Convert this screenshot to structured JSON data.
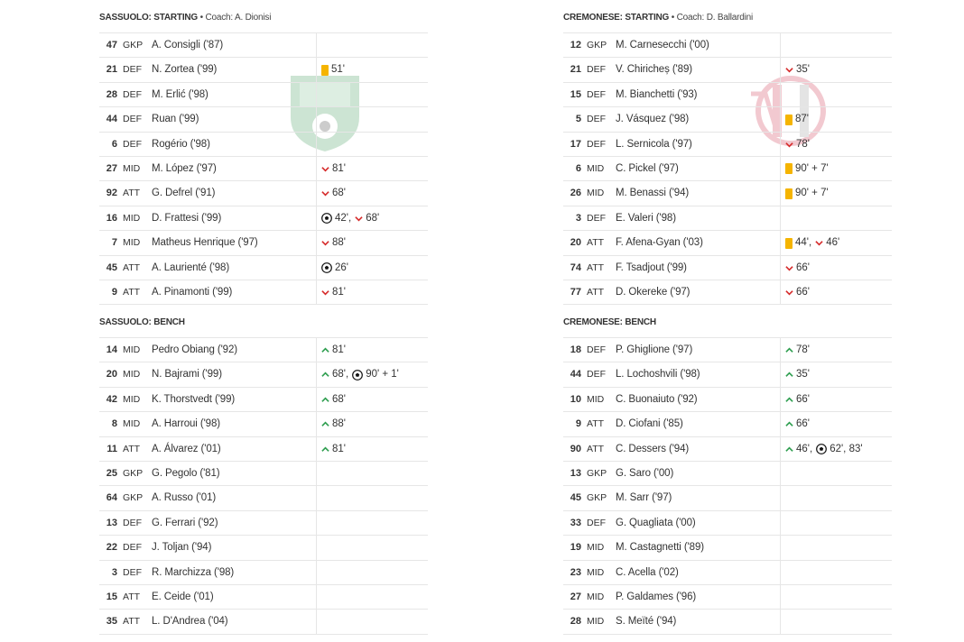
{
  "home": {
    "starting_header": {
      "team": "SASSUOLO: STARTING",
      "bullet": "•",
      "coach": "Coach: A. Dionisi"
    },
    "bench_header": {
      "team": "SASSUOLO: BENCH"
    },
    "crest": "sassuolo-crest",
    "starting": [
      {
        "num": "47",
        "pos": "GKP",
        "name": "A. Consigli ('87)",
        "events": []
      },
      {
        "num": "21",
        "pos": "DEF",
        "name": "N. Zortea ('99)",
        "events": [
          {
            "type": "yellow-card",
            "text": "51'"
          }
        ]
      },
      {
        "num": "28",
        "pos": "DEF",
        "name": "M. Erlić ('98)",
        "events": []
      },
      {
        "num": "44",
        "pos": "DEF",
        "name": "Ruan ('99)",
        "events": []
      },
      {
        "num": "6",
        "pos": "DEF",
        "name": "Rogério ('98)",
        "events": []
      },
      {
        "num": "27",
        "pos": "MID",
        "name": "M. López ('97)",
        "events": [
          {
            "type": "sub-out",
            "text": "81'"
          }
        ]
      },
      {
        "num": "92",
        "pos": "ATT",
        "name": "G. Defrel ('91)",
        "events": [
          {
            "type": "sub-out",
            "text": "68'"
          }
        ]
      },
      {
        "num": "16",
        "pos": "MID",
        "name": "D. Frattesi ('99)",
        "events": [
          {
            "type": "goal",
            "text": "42',"
          },
          {
            "type": "sub-out",
            "text": "68'"
          }
        ]
      },
      {
        "num": "7",
        "pos": "MID",
        "name": "Matheus Henrique ('97)",
        "events": [
          {
            "type": "sub-out",
            "text": "88'"
          }
        ]
      },
      {
        "num": "45",
        "pos": "ATT",
        "name": "A. Laurienté ('98)",
        "events": [
          {
            "type": "goal",
            "text": "26'"
          }
        ]
      },
      {
        "num": "9",
        "pos": "ATT",
        "name": "A. Pinamonti ('99)",
        "events": [
          {
            "type": "sub-out",
            "text": "81'"
          }
        ]
      }
    ],
    "bench": [
      {
        "num": "14",
        "pos": "MID",
        "name": "Pedro Obiang ('92)",
        "events": [
          {
            "type": "sub-in",
            "text": "81'"
          }
        ]
      },
      {
        "num": "20",
        "pos": "MID",
        "name": "N. Bajrami ('99)",
        "events": [
          {
            "type": "sub-in",
            "text": "68',"
          },
          {
            "type": "goal",
            "text": "90' + 1'"
          }
        ]
      },
      {
        "num": "42",
        "pos": "MID",
        "name": "K. Thorstvedt ('99)",
        "events": [
          {
            "type": "sub-in",
            "text": "68'"
          }
        ]
      },
      {
        "num": "8",
        "pos": "MID",
        "name": "A. Harroui ('98)",
        "events": [
          {
            "type": "sub-in",
            "text": "88'"
          }
        ]
      },
      {
        "num": "11",
        "pos": "ATT",
        "name": "A. Álvarez ('01)",
        "events": [
          {
            "type": "sub-in",
            "text": "81'"
          }
        ]
      },
      {
        "num": "25",
        "pos": "GKP",
        "name": "G. Pegolo ('81)",
        "events": []
      },
      {
        "num": "64",
        "pos": "GKP",
        "name": "A. Russo ('01)",
        "events": []
      },
      {
        "num": "13",
        "pos": "DEF",
        "name": "G. Ferrari ('92)",
        "events": []
      },
      {
        "num": "22",
        "pos": "DEF",
        "name": "J. Toljan ('94)",
        "events": []
      },
      {
        "num": "3",
        "pos": "DEF",
        "name": "R. Marchizza ('98)",
        "events": []
      },
      {
        "num": "15",
        "pos": "ATT",
        "name": "E. Ceide ('01)",
        "events": []
      },
      {
        "num": "35",
        "pos": "ATT",
        "name": "L. D'Andrea ('04)",
        "events": []
      }
    ]
  },
  "away": {
    "starting_header": {
      "team": "CREMONESE: STARTING",
      "bullet": "•",
      "coach": "Coach: D. Ballardini"
    },
    "bench_header": {
      "team": "CREMONESE: BENCH"
    },
    "crest": "cremonese-crest",
    "starting": [
      {
        "num": "12",
        "pos": "GKP",
        "name": "M. Carnesecchi ('00)",
        "events": []
      },
      {
        "num": "21",
        "pos": "DEF",
        "name": "V. Chiricheș ('89)",
        "events": [
          {
            "type": "sub-out",
            "text": "35'"
          }
        ]
      },
      {
        "num": "15",
        "pos": "DEF",
        "name": "M. Bianchetti ('93)",
        "events": []
      },
      {
        "num": "5",
        "pos": "DEF",
        "name": "J. Vásquez ('98)",
        "events": [
          {
            "type": "yellow-card",
            "text": "87'"
          }
        ]
      },
      {
        "num": "17",
        "pos": "DEF",
        "name": "L. Sernicola ('97)",
        "events": [
          {
            "type": "sub-out",
            "text": "78'"
          }
        ]
      },
      {
        "num": "6",
        "pos": "MID",
        "name": "C. Pickel ('97)",
        "events": [
          {
            "type": "yellow-card",
            "text": "90' + 7'"
          }
        ]
      },
      {
        "num": "26",
        "pos": "MID",
        "name": "M. Benassi ('94)",
        "events": [
          {
            "type": "yellow-card",
            "text": "90' + 7'"
          }
        ]
      },
      {
        "num": "3",
        "pos": "DEF",
        "name": "E. Valeri ('98)",
        "events": []
      },
      {
        "num": "20",
        "pos": "ATT",
        "name": "F. Afena-Gyan ('03)",
        "events": [
          {
            "type": "yellow-card",
            "text": "44',"
          },
          {
            "type": "sub-out",
            "text": "46'"
          }
        ]
      },
      {
        "num": "74",
        "pos": "ATT",
        "name": "F. Tsadjout ('99)",
        "events": [
          {
            "type": "sub-out",
            "text": "66'"
          }
        ]
      },
      {
        "num": "77",
        "pos": "ATT",
        "name": "D. Okereke ('97)",
        "events": [
          {
            "type": "sub-out",
            "text": "66'"
          }
        ]
      }
    ],
    "bench": [
      {
        "num": "18",
        "pos": "DEF",
        "name": "P. Ghiglione ('97)",
        "events": [
          {
            "type": "sub-in",
            "text": "78'"
          }
        ]
      },
      {
        "num": "44",
        "pos": "DEF",
        "name": "L. Lochoshvili ('98)",
        "events": [
          {
            "type": "sub-in",
            "text": "35'"
          }
        ]
      },
      {
        "num": "10",
        "pos": "MID",
        "name": "C. Buonaiuto ('92)",
        "events": [
          {
            "type": "sub-in",
            "text": "66'"
          }
        ]
      },
      {
        "num": "9",
        "pos": "ATT",
        "name": "D. Ciofani ('85)",
        "events": [
          {
            "type": "sub-in",
            "text": "66'"
          }
        ]
      },
      {
        "num": "90",
        "pos": "ATT",
        "name": "C. Dessers ('94)",
        "events": [
          {
            "type": "sub-in",
            "text": "46',"
          },
          {
            "type": "goal",
            "text": "62', 83'"
          }
        ]
      },
      {
        "num": "13",
        "pos": "GKP",
        "name": "G. Saro ('00)",
        "events": []
      },
      {
        "num": "45",
        "pos": "GKP",
        "name": "M. Sarr ('97)",
        "events": []
      },
      {
        "num": "33",
        "pos": "DEF",
        "name": "G. Quagliata ('00)",
        "events": []
      },
      {
        "num": "19",
        "pos": "MID",
        "name": "M. Castagnetti ('89)",
        "events": []
      },
      {
        "num": "23",
        "pos": "MID",
        "name": "C. Acella ('02)",
        "events": []
      },
      {
        "num": "27",
        "pos": "MID",
        "name": "P. Galdames ('96)",
        "events": []
      },
      {
        "num": "28",
        "pos": "MID",
        "name": "S. Meïté ('94)",
        "events": []
      }
    ]
  },
  "colors": {
    "yellow_card": "#f5b400",
    "sub_out": "#d62b2b",
    "sub_in": "#2e9e4f",
    "sassuolo_green": "#1a8a3a",
    "cremonese_red": "#c8102e"
  }
}
